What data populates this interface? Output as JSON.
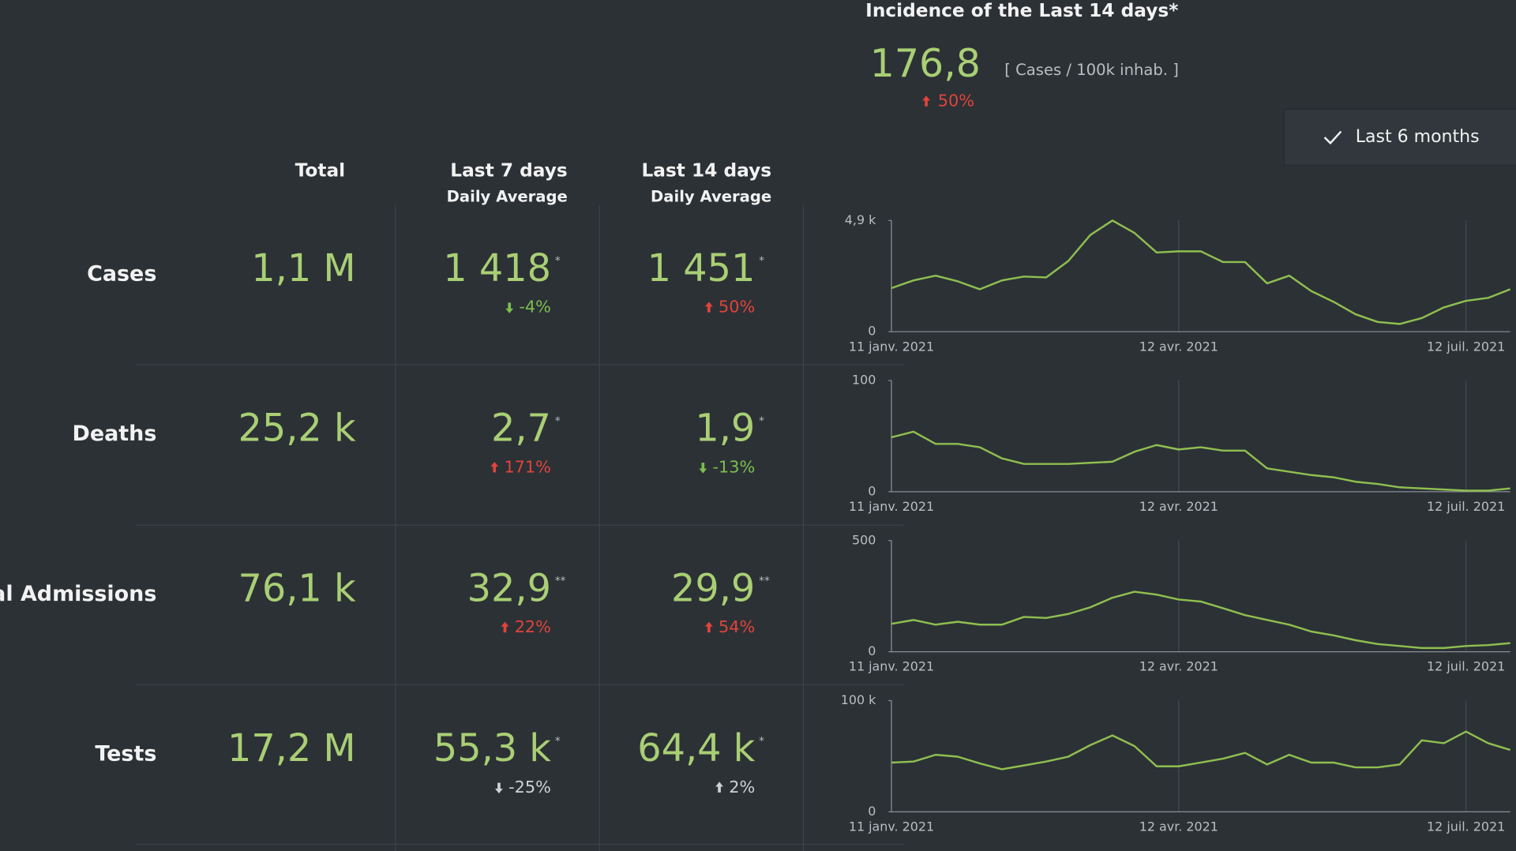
{
  "header": {
    "title": "Incidence of the Last 14 days*",
    "value": "176,8",
    "unit": "[ Cases / 100k inhab. ]",
    "change": {
      "text": "50%",
      "arrow": "up",
      "color": "#e0453a"
    }
  },
  "filter": {
    "label": "Last 6 months"
  },
  "columns": [
    {
      "title": "Total"
    },
    {
      "title": "Last 7 days",
      "subtitle": "Daily Average"
    },
    {
      "title": "Last 14 days",
      "subtitle": "Daily Average"
    }
  ],
  "rows": [
    {
      "label": "Cases",
      "total": "1,1 M",
      "last7": {
        "value": "1 418",
        "note": "*",
        "change": {
          "text": "-4%",
          "arrow": "down",
          "color": "#7bbf4e"
        }
      },
      "last14": {
        "value": "1 451",
        "note": "*",
        "change": {
          "text": "50%",
          "arrow": "up",
          "color": "#e0453a"
        }
      }
    },
    {
      "label": "Deaths",
      "total": "25,2 k",
      "last7": {
        "value": "2,7",
        "note": "*",
        "change": {
          "text": "171%",
          "arrow": "up",
          "color": "#e0453a"
        }
      },
      "last14": {
        "value": "1,9",
        "note": "*",
        "change": {
          "text": "-13%",
          "arrow": "down",
          "color": "#7bbf4e"
        }
      }
    },
    {
      "label": "ital Admissions",
      "total": "76,1 k",
      "last7": {
        "value": "32,9",
        "note": "**",
        "change": {
          "text": "22%",
          "arrow": "up",
          "color": "#e0453a"
        }
      },
      "last14": {
        "value": "29,9",
        "note": "**",
        "change": {
          "text": "54%",
          "arrow": "up",
          "color": "#e0453a"
        }
      }
    },
    {
      "label": "Tests",
      "total": "17,2 M",
      "last7": {
        "value": "55,3 k",
        "note": "*",
        "change": {
          "text": "-25%",
          "arrow": "down",
          "color": "#cfd3d6"
        }
      },
      "last14": {
        "value": "64,4 k",
        "note": "*",
        "change": {
          "text": "2%",
          "arrow": "up",
          "color": "#cfd3d6"
        }
      }
    }
  ],
  "chart_data": [
    {
      "type": "line",
      "color": "#8fbf4f",
      "xlim": [
        0,
        28
      ],
      "ylim": [
        0,
        4900
      ],
      "yticks": [
        0,
        {
          "value": 4900,
          "label": "4,9 k"
        }
      ],
      "xticks": [
        {
          "value": 0,
          "label": "11 janv. 2021"
        },
        {
          "value": 13,
          "label": "12 avr. 2021"
        },
        {
          "value": 26,
          "label": "12 juil. 2021"
        }
      ],
      "values": [
        1920,
        2260,
        2470,
        2220,
        1870,
        2260,
        2430,
        2390,
        3110,
        4260,
        4900,
        4350,
        3490,
        3540,
        3540,
        3070,
        3070,
        2130,
        2470,
        1790,
        1320,
        770,
        430,
        340,
        600,
        1070,
        1360,
        1490,
        1870
      ]
    },
    {
      "type": "line",
      "color": "#8fbf4f",
      "xlim": [
        0,
        28
      ],
      "ylim": [
        0,
        100
      ],
      "yticks": [
        0,
        100
      ],
      "xticks": [
        {
          "value": 0,
          "label": "11 janv. 2021"
        },
        {
          "value": 13,
          "label": "12 avr. 2021"
        },
        {
          "value": 26,
          "label": "12 juil. 2021"
        }
      ],
      "values": [
        49,
        54,
        43,
        43,
        40,
        30,
        25,
        25,
        25,
        26,
        27,
        36,
        42,
        38,
        40,
        37,
        37,
        21,
        18,
        15,
        13,
        9,
        7,
        4,
        3,
        2,
        1,
        1,
        3
      ]
    },
    {
      "type": "line",
      "color": "#8fbf4f",
      "xlim": [
        0,
        28
      ],
      "ylim": [
        0,
        500
      ],
      "yticks": [
        0,
        500
      ],
      "xticks": [
        {
          "value": 0,
          "label": "11 janv. 2021"
        },
        {
          "value": 13,
          "label": "12 avr. 2021"
        },
        {
          "value": 26,
          "label": "12 juil. 2021"
        }
      ],
      "values": [
        126,
        143,
        122,
        135,
        122,
        122,
        157,
        152,
        170,
        200,
        243,
        270,
        257,
        235,
        226,
        196,
        165,
        143,
        122,
        91,
        74,
        52,
        35,
        26,
        17,
        17,
        26,
        30,
        39
      ]
    },
    {
      "type": "line",
      "color": "#8fbf4f",
      "xlim": [
        0,
        28
      ],
      "ylim": [
        0,
        100000
      ],
      "yticks": [
        0,
        {
          "value": 100000,
          "label": "100 k"
        }
      ],
      "xticks": [
        {
          "value": 0,
          "label": "11 janv. 2021"
        },
        {
          "value": 13,
          "label": "12 avr. 2021"
        },
        {
          "value": 26,
          "label": "12 juil. 2021"
        }
      ],
      "values": [
        44300,
        45200,
        51300,
        49600,
        43500,
        38300,
        41700,
        45200,
        49600,
        60000,
        68700,
        59100,
        40900,
        40900,
        44300,
        47800,
        53000,
        42600,
        51300,
        44300,
        44300,
        40000,
        40000,
        42600,
        64300,
        61700,
        72200,
        61700,
        55700
      ]
    }
  ]
}
